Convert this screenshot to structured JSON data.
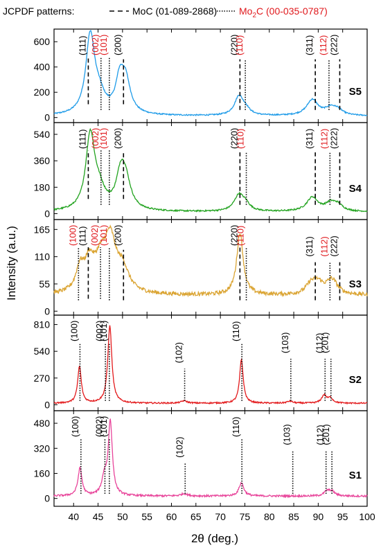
{
  "legend": {
    "prefix": "JCPDF patterns:",
    "moc_label": "MoC (01-089-2868)",
    "mo2c_prefix": "Mo",
    "mo2c_sub": "2",
    "mo2c_suffix": "C (00-035-0787)",
    "moc_color": "#000000",
    "mo2c_color": "#e0181c"
  },
  "chart_data": {
    "type": "line",
    "xlabel": "2θ (deg.)",
    "ylabel": "Intensity (a.u.)",
    "xlim": [
      36,
      100
    ],
    "x_ticks": [
      40,
      45,
      50,
      55,
      60,
      65,
      70,
      75,
      80,
      85,
      90,
      95,
      100
    ],
    "panels": [
      {
        "name": "S5",
        "color": "#1e9be8",
        "ylim": [
          -40,
          700
        ],
        "yticks": [
          0,
          200,
          400,
          600
        ],
        "baseline": 12,
        "noise": 5,
        "peaks": [
          [
            43.4,
            610,
            1.1
          ],
          [
            45.2,
            130,
            1.5
          ],
          [
            49.4,
            230,
            1.0
          ],
          [
            50.6,
            260,
            1.2
          ],
          [
            73.8,
            150,
            1.1
          ],
          [
            75.2,
            40,
            1.0
          ],
          [
            88.8,
            125,
            1.4
          ],
          [
            92.5,
            55,
            1.3
          ],
          [
            94.0,
            40,
            1.2
          ]
        ],
        "ref_lines": [
          {
            "x": 43.0,
            "y": 105,
            "style": "dash",
            "color": "#000000",
            "label": "(111)",
            "ly": 590
          },
          {
            "x": 45.6,
            "y": 60,
            "style": "dot",
            "color": "#e0181c",
            "label": "(002)",
            "ly": 590
          },
          {
            "x": 47.3,
            "y": 60,
            "style": "dot",
            "color": "#e0181c",
            "label": "(101)",
            "ly": 590
          },
          {
            "x": 50.2,
            "y": 105,
            "style": "dash",
            "color": "#000000",
            "label": "(200)",
            "ly": 505
          },
          {
            "x": 74.0,
            "y": 60,
            "style": "dash",
            "color": "#000000",
            "label": "(220)",
            "ly": 505
          },
          {
            "x": 75.1,
            "y": 60,
            "style": "dot",
            "color": "#e0181c",
            "label": "(110)",
            "ly": 505
          },
          {
            "x": 89.4,
            "y": 60,
            "style": "dash",
            "color": "#000000",
            "label": "(311)",
            "ly": 505
          },
          {
            "x": 92.2,
            "y": 60,
            "style": "dot",
            "color": "#e0181c",
            "label": "(112)",
            "ly": 505
          },
          {
            "x": 94.4,
            "y": 60,
            "style": "dash",
            "color": "#000000",
            "label": "(222)",
            "ly": 505
          }
        ]
      },
      {
        "name": "S4",
        "color": "#22a31f",
        "ylim": [
          -40,
          620
        ],
        "yticks": [
          0,
          180,
          360,
          540
        ],
        "baseline": 12,
        "noise": 5,
        "peaks": [
          [
            43.4,
            500,
            1.1
          ],
          [
            45.2,
            120,
            1.5
          ],
          [
            49.6,
            200,
            1.1
          ],
          [
            50.6,
            190,
            1.3
          ],
          [
            73.8,
            110,
            1.2
          ],
          [
            75.2,
            40,
            1.0
          ],
          [
            88.8,
            95,
            1.4
          ],
          [
            92.5,
            50,
            1.3
          ],
          [
            94.0,
            40,
            1.2
          ]
        ],
        "ref_lines": [
          {
            "x": 43.0,
            "y": 100,
            "style": "dash",
            "color": "#000000",
            "label": "(111)",
            "ly": 535
          },
          {
            "x": 45.6,
            "y": 60,
            "style": "dot",
            "color": "#e0181c",
            "label": "(002)",
            "ly": 535
          },
          {
            "x": 47.3,
            "y": 60,
            "style": "dot",
            "color": "#e0181c",
            "label": "(101)",
            "ly": 535
          },
          {
            "x": 50.2,
            "y": 100,
            "style": "dash",
            "color": "#000000",
            "label": "(200)",
            "ly": 455
          },
          {
            "x": 74.0,
            "y": 60,
            "style": "dash",
            "color": "#000000",
            "label": "(220)",
            "ly": 455
          },
          {
            "x": 75.3,
            "y": 60,
            "style": "dot",
            "color": "#e0181c",
            "label": "(110)",
            "ly": 455
          },
          {
            "x": 89.4,
            "y": 60,
            "style": "dash",
            "color": "#000000",
            "label": "(311)",
            "ly": 455
          },
          {
            "x": 92.4,
            "y": 60,
            "style": "dot",
            "color": "#e0181c",
            "label": "(112)",
            "ly": 455
          },
          {
            "x": 94.4,
            "y": 60,
            "style": "dash",
            "color": "#000000",
            "label": "(222)",
            "ly": 455
          }
        ]
      },
      {
        "name": "S3",
        "color": "#dba534",
        "ylim": [
          -8,
          185
        ],
        "yticks": [
          0,
          55,
          110,
          165
        ],
        "baseline": 32,
        "noise": 4,
        "peaks": [
          [
            41.3,
            45,
            1.0
          ],
          [
            43.2,
            55,
            1.2
          ],
          [
            45.5,
            55,
            1.5
          ],
          [
            47.5,
            100,
            1.4
          ],
          [
            50.0,
            45,
            1.5
          ],
          [
            74.0,
            125,
            0.8
          ],
          [
            88.5,
            20,
            1.2
          ],
          [
            90.0,
            20,
            1.2
          ],
          [
            92.8,
            30,
            1.4
          ]
        ],
        "ref_lines": [
          {
            "x": 41.0,
            "y": 22,
            "style": "dot",
            "color": "#e0181c",
            "label": "(100)",
            "ly": 160
          },
          {
            "x": 43.0,
            "y": 25,
            "style": "dash",
            "color": "#000000",
            "label": "(111)",
            "ly": 160
          },
          {
            "x": 45.5,
            "y": 25,
            "style": "dot",
            "color": "#e0181c",
            "label": "(002)",
            "ly": 160
          },
          {
            "x": 47.3,
            "y": 22,
            "style": "dot",
            "color": "#e0181c",
            "label": "(101)",
            "ly": 160
          },
          {
            "x": 50.2,
            "y": 22,
            "style": "dash",
            "color": "#000000",
            "label": "(200)",
            "ly": 135
          },
          {
            "x": 74.0,
            "y": 22,
            "style": "dash",
            "color": "#000000",
            "label": "(220)",
            "ly": 160
          },
          {
            "x": 75.3,
            "y": 22,
            "style": "dot",
            "color": "#e0181c",
            "label": "(110)",
            "ly": 160
          },
          {
            "x": 89.4,
            "y": 22,
            "style": "dash",
            "color": "#000000",
            "label": "(311)",
            "ly": 110
          },
          {
            "x": 92.4,
            "y": 22,
            "style": "dot",
            "color": "#e0181c",
            "label": "(112)",
            "ly": 110
          },
          {
            "x": 94.4,
            "y": 22,
            "style": "dash",
            "color": "#000000",
            "label": "(222)",
            "ly": 110
          }
        ]
      },
      {
        "name": "S2",
        "color": "#e31a1c",
        "ylim": [
          -60,
          905
        ],
        "yticks": [
          0,
          270,
          540,
          810
        ],
        "baseline": 15,
        "noise": 7,
        "peaks": [
          [
            41.2,
            370,
            0.45
          ],
          [
            47.4,
            780,
            0.5
          ],
          [
            62.6,
            25,
            0.7
          ],
          [
            74.3,
            440,
            0.45
          ],
          [
            84.2,
            20,
            0.7
          ],
          [
            91.2,
            80,
            0.6
          ],
          [
            92.5,
            50,
            0.6
          ]
        ],
        "ref_lines": [
          {
            "x": 41.3,
            "y": 40,
            "style": "dot",
            "color": "#000000",
            "label": "(100)",
            "ly": 800
          },
          {
            "x": 46.5,
            "y": 40,
            "style": "dot",
            "color": "#000000",
            "label": "(002)",
            "ly": 800
          },
          {
            "x": 47.3,
            "y": 40,
            "style": "dot",
            "color": "#000000",
            "label": "(101)",
            "ly": 800
          },
          {
            "x": 62.7,
            "y": 40,
            "style": "dot",
            "color": "#000000",
            "label": "(102)",
            "ly": 420
          },
          {
            "x": 74.4,
            "y": 40,
            "style": "dot",
            "color": "#000000",
            "label": "(110)",
            "ly": 800
          },
          {
            "x": 84.4,
            "y": 40,
            "style": "dot",
            "color": "#000000",
            "label": "(103)",
            "ly": 520
          },
          {
            "x": 91.4,
            "y": 40,
            "style": "dot",
            "color": "#000000",
            "label": "(112)",
            "ly": 520
          },
          {
            "x": 92.6,
            "y": 40,
            "style": "dot",
            "color": "#000000",
            "label": "(201)",
            "ly": 520
          }
        ]
      },
      {
        "name": "S1",
        "color": "#e8449a",
        "ylim": [
          -50,
          560
        ],
        "yticks": [
          0,
          160,
          320,
          480
        ],
        "baseline": 15,
        "noise": 6,
        "peaks": [
          [
            41.3,
            175,
            0.5
          ],
          [
            46.3,
            110,
            0.6
          ],
          [
            47.5,
            470,
            0.5
          ],
          [
            62.6,
            15,
            0.8
          ],
          [
            74.3,
            85,
            0.6
          ],
          [
            91.8,
            30,
            0.7
          ],
          [
            92.8,
            28,
            0.7
          ]
        ],
        "ref_lines": [
          {
            "x": 41.5,
            "y": 30,
            "style": "dot",
            "color": "#000000",
            "label": "(100)",
            "ly": 490
          },
          {
            "x": 46.4,
            "y": 30,
            "style": "dot",
            "color": "#000000",
            "label": "(002)",
            "ly": 490
          },
          {
            "x": 47.3,
            "y": 30,
            "style": "dot",
            "color": "#000000",
            "label": "(101)",
            "ly": 490
          },
          {
            "x": 62.8,
            "y": 30,
            "style": "dot",
            "color": "#000000",
            "label": "(102)",
            "ly": 260
          },
          {
            "x": 74.4,
            "y": 30,
            "style": "dot",
            "color": "#000000",
            "label": "(110)",
            "ly": 490
          },
          {
            "x": 84.8,
            "y": 30,
            "style": "dot",
            "color": "#000000",
            "label": "(103)",
            "ly": 340
          },
          {
            "x": 91.6,
            "y": 30,
            "style": "dot",
            "color": "#000000",
            "label": "(112)",
            "ly": 340
          },
          {
            "x": 92.8,
            "y": 30,
            "style": "dot",
            "color": "#000000",
            "label": "(201)",
            "ly": 340
          }
        ]
      }
    ]
  }
}
